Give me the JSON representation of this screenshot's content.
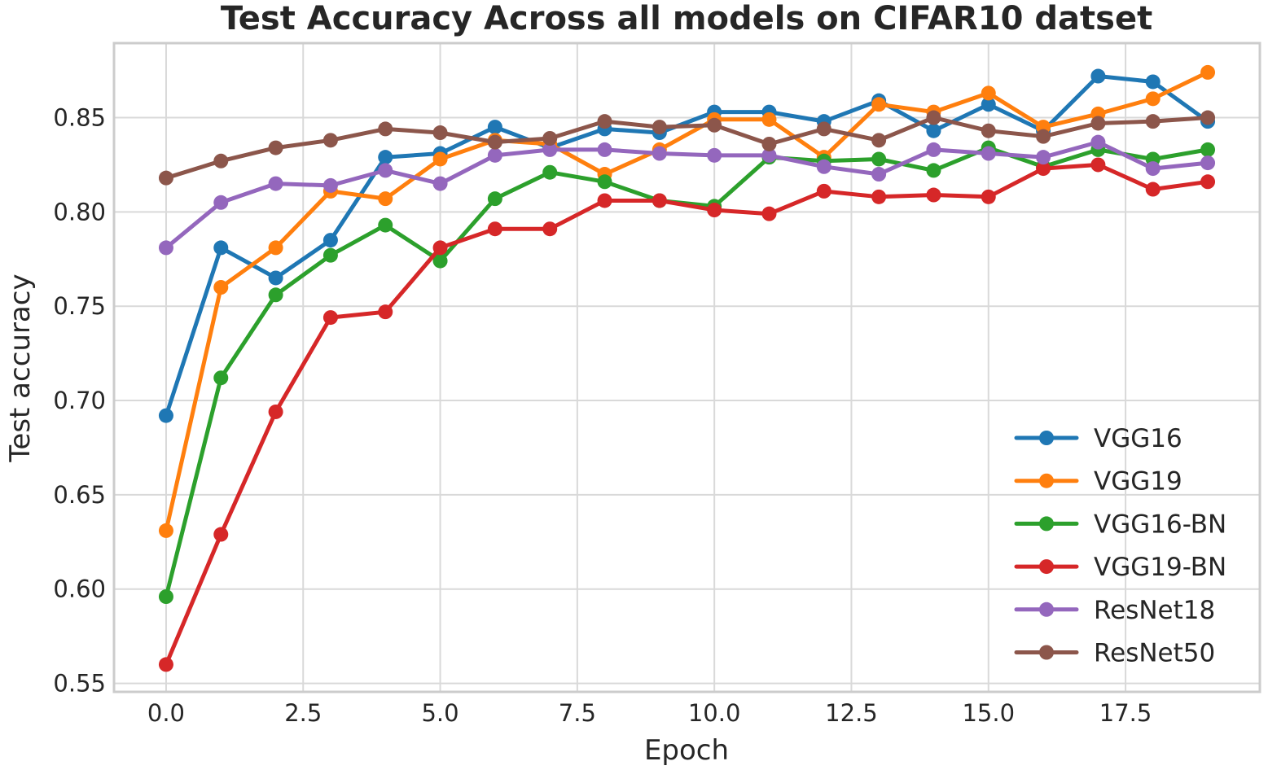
{
  "chart_data": {
    "type": "line",
    "title": "Test Accuracy Across all models on CIFAR10 datset",
    "xlabel": "Epoch",
    "ylabel": "Test accuracy",
    "xlim": [
      -0.95,
      19.95
    ],
    "ylim": [
      0.5455,
      0.8895
    ],
    "xticks": [
      0.0,
      2.5,
      5.0,
      7.5,
      10.0,
      12.5,
      15.0,
      17.5
    ],
    "xtick_labels": [
      "0.0",
      "2.5",
      "5.0",
      "7.5",
      "10.0",
      "12.5",
      "15.0",
      "17.5"
    ],
    "yticks": [
      0.55,
      0.6,
      0.65,
      0.7,
      0.75,
      0.8,
      0.85
    ],
    "ytick_labels": [
      "0.55",
      "0.60",
      "0.65",
      "0.70",
      "0.75",
      "0.80",
      "0.85"
    ],
    "grid": true,
    "legend_position": "lower-right",
    "x": [
      0,
      1,
      2,
      3,
      4,
      5,
      6,
      7,
      8,
      9,
      10,
      11,
      12,
      13,
      14,
      15,
      16,
      17,
      18,
      19
    ],
    "series": [
      {
        "name": "VGG16",
        "color": "#1f77b4",
        "values": [
          0.692,
          0.781,
          0.765,
          0.785,
          0.829,
          0.831,
          0.845,
          0.834,
          0.844,
          0.842,
          0.853,
          0.853,
          0.848,
          0.859,
          0.843,
          0.857,
          0.843,
          0.872,
          0.869,
          0.848
        ]
      },
      {
        "name": "VGG19",
        "color": "#ff7f0e",
        "values": [
          0.631,
          0.76,
          0.781,
          0.811,
          0.807,
          0.828,
          0.838,
          0.836,
          0.82,
          0.833,
          0.849,
          0.849,
          0.829,
          0.857,
          0.853,
          0.863,
          0.845,
          0.852,
          0.86,
          0.874
        ]
      },
      {
        "name": "VGG16-BN",
        "color": "#2ca02c",
        "values": [
          0.596,
          0.712,
          0.756,
          0.777,
          0.793,
          0.774,
          0.807,
          0.821,
          0.816,
          0.806,
          0.803,
          0.829,
          0.827,
          0.828,
          0.822,
          0.834,
          0.824,
          0.833,
          0.828,
          0.833
        ]
      },
      {
        "name": "VGG19-BN",
        "color": "#d62728",
        "values": [
          0.56,
          0.629,
          0.694,
          0.744,
          0.747,
          0.781,
          0.791,
          0.791,
          0.806,
          0.806,
          0.801,
          0.799,
          0.811,
          0.808,
          0.809,
          0.808,
          0.823,
          0.825,
          0.812,
          0.816
        ]
      },
      {
        "name": "ResNet18",
        "color": "#9467bd",
        "values": [
          0.781,
          0.805,
          0.815,
          0.814,
          0.822,
          0.815,
          0.83,
          0.833,
          0.833,
          0.831,
          0.83,
          0.83,
          0.824,
          0.82,
          0.833,
          0.831,
          0.829,
          0.837,
          0.823,
          0.826
        ]
      },
      {
        "name": "ResNet50",
        "color": "#8c564b",
        "values": [
          0.818,
          0.827,
          0.834,
          0.838,
          0.844,
          0.842,
          0.837,
          0.839,
          0.848,
          0.845,
          0.846,
          0.836,
          0.844,
          0.838,
          0.85,
          0.843,
          0.84,
          0.847,
          0.848,
          0.85
        ]
      }
    ]
  }
}
